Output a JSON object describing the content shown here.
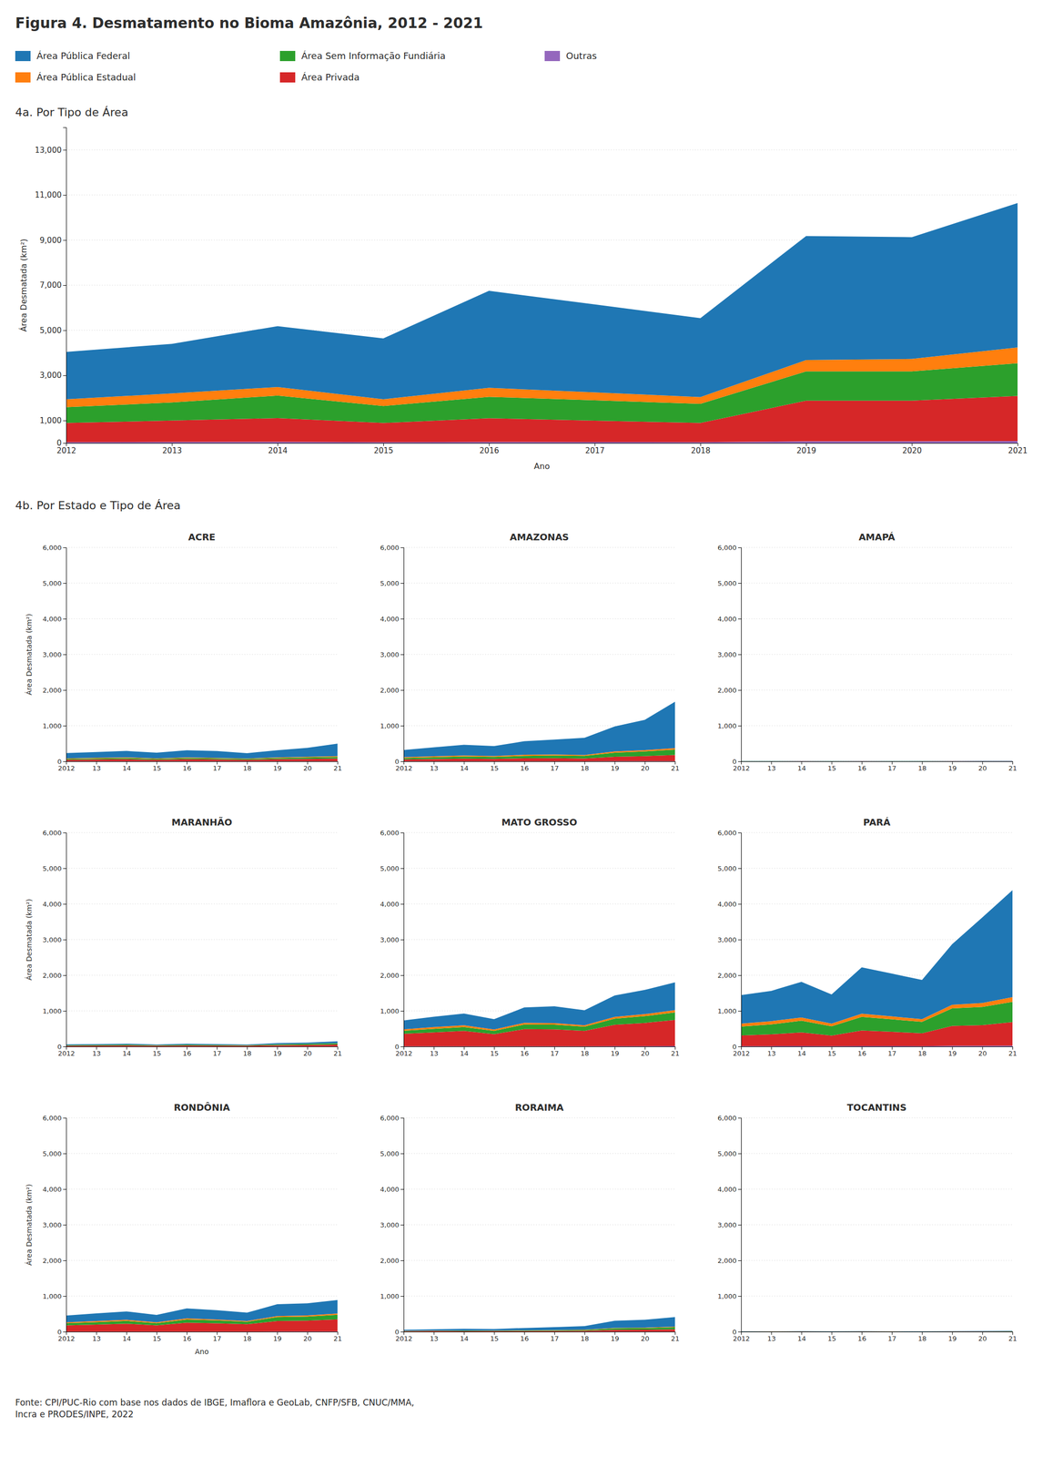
{
  "chart_data": [
    {
      "type": "area",
      "stacked": true,
      "grid": true,
      "legend": "top",
      "title": "Figura 4. Desmatamento no Bioma Amazônia, 2012 - 2021",
      "subtitle": "4a. Por Tipo de Área",
      "xlabel": "Ano",
      "ylabel": "Área Desmatada (km²)",
      "annotations": [
        "Fonte: CPI/PUC-Rio com base nos dados de IBGE, Imaflora e GeoLab, CNFP/SFB, CNUC/MMA,\nIncra e PRODES/INPE, 2022"
      ],
      "categories": [
        "2012",
        "2013",
        "2014",
        "2015",
        "2016",
        "2017",
        "2018",
        "2019",
        "2020",
        "2021"
      ],
      "ylim": [
        0,
        14000
      ],
      "yticks": [
        0,
        {
          "value": 1000,
          "label": "1,000"
        },
        {
          "value": 3000,
          "label": "3,000"
        },
        {
          "value": 5000,
          "label": "5,000"
        },
        {
          "value": 7000,
          "label": "7,000"
        },
        {
          "value": 9000,
          "label": "9,000"
        },
        {
          "value": 11000,
          "label": "11,000"
        },
        {
          "value": 13000,
          "label": "13,000"
        }
      ],
      "series": [
        {
          "name": "Área Pública Federal",
          "values": [
            2100,
            2200,
            2700,
            2700,
            4300,
            3900,
            3500,
            5500,
            5400,
            6400
          ]
        },
        {
          "name": "Área Pública Estadual",
          "values": [
            350,
            400,
            380,
            300,
            400,
            350,
            300,
            500,
            550,
            700
          ]
        },
        {
          "name": "Área Sem Informação Fundiária",
          "values": [
            700,
            800,
            1000,
            750,
            950,
            900,
            850,
            1300,
            1300,
            1450
          ]
        },
        {
          "name": "Área Privada",
          "values": [
            850,
            950,
            1050,
            850,
            1050,
            950,
            850,
            1800,
            1800,
            2000
          ]
        },
        {
          "name": "Outras",
          "values": [
            40,
            50,
            55,
            40,
            50,
            45,
            40,
            80,
            80,
            90
          ]
        }
      ]
    },
    {
      "type": "area",
      "stacked": true,
      "grid": true,
      "title": "ACRE",
      "subtitle": "4b. Por Estado e Tipo de Área",
      "ylabel": "Área Desmatada (km²)",
      "categories": [
        "2012",
        "13",
        "14",
        "15",
        "16",
        "17",
        "18",
        "19",
        "20",
        "21"
      ],
      "ylim": [
        0,
        6000
      ],
      "yticks": [
        0,
        {
          "value": 1000,
          "label": "1,000"
        },
        {
          "value": 2000,
          "label": "2,000"
        },
        {
          "value": 3000,
          "label": "3,000"
        },
        {
          "value": 4000,
          "label": "4,000"
        },
        {
          "value": 5000,
          "label": "5,000"
        },
        {
          "value": 6000,
          "label": "6,000"
        }
      ],
      "series": [
        {
          "values": [
            150,
            160,
            180,
            160,
            200,
            190,
            150,
            200,
            250,
            350
          ]
        },
        {
          "values": [
            15,
            18,
            18,
            15,
            18,
            15,
            12,
            15,
            18,
            20
          ]
        },
        {
          "values": [
            25,
            30,
            35,
            25,
            35,
            30,
            25,
            35,
            40,
            45
          ]
        },
        {
          "values": [
            40,
            50,
            55,
            40,
            55,
            50,
            40,
            55,
            65,
            75
          ]
        },
        {
          "values": [
            3,
            3,
            4,
            3,
            4,
            3,
            3,
            4,
            4,
            5
          ]
        }
      ]
    },
    {
      "type": "area",
      "stacked": true,
      "grid": true,
      "title": "AMAZONAS",
      "categories": [
        "2012",
        "13",
        "14",
        "15",
        "16",
        "17",
        "18",
        "19",
        "20",
        "21"
      ],
      "ylim": [
        0,
        6000
      ],
      "yticks": [
        0,
        {
          "value": 1000,
          "label": "1,000"
        },
        {
          "value": 2000,
          "label": "2,000"
        },
        {
          "value": 3000,
          "label": "3,000"
        },
        {
          "value": 4000,
          "label": "4,000"
        },
        {
          "value": 5000,
          "label": "5,000"
        },
        {
          "value": 6000,
          "label": "6,000"
        }
      ],
      "series": [
        {
          "values": [
            200,
            250,
            300,
            280,
            380,
            420,
            480,
            700,
            850,
            1300
          ]
        },
        {
          "values": [
            25,
            30,
            30,
            25,
            30,
            28,
            25,
            35,
            38,
            45
          ]
        },
        {
          "values": [
            40,
            50,
            60,
            55,
            70,
            75,
            75,
            115,
            130,
            150
          ]
        },
        {
          "values": [
            50,
            60,
            70,
            65,
            80,
            85,
            75,
            120,
            140,
            170
          ]
        },
        {
          "values": [
            4,
            4,
            4,
            4,
            4,
            4,
            4,
            8,
            8,
            8
          ]
        }
      ]
    },
    {
      "type": "area",
      "stacked": true,
      "grid": true,
      "title": "AMAPÁ",
      "categories": [
        "2012",
        "13",
        "14",
        "15",
        "16",
        "17",
        "18",
        "19",
        "20",
        "21"
      ],
      "ylim": [
        0,
        6000
      ],
      "yticks": [
        0,
        {
          "value": 1000,
          "label": "1,000"
        },
        {
          "value": 2000,
          "label": "2,000"
        },
        {
          "value": 3000,
          "label": "3,000"
        },
        {
          "value": 4000,
          "label": "4,000"
        },
        {
          "value": 5000,
          "label": "5,000"
        },
        {
          "value": 6000,
          "label": "6,000"
        }
      ],
      "series": [
        {
          "values": [
            4,
            4,
            5,
            4,
            5,
            4,
            4,
            5,
            6,
            7
          ]
        },
        {
          "values": [
            0,
            0,
            0,
            0,
            0,
            0,
            0,
            0,
            0,
            0
          ]
        },
        {
          "values": [
            1,
            1,
            1,
            1,
            1,
            1,
            1,
            1,
            2,
            2
          ]
        },
        {
          "values": [
            1,
            1,
            2,
            1,
            2,
            1,
            1,
            2,
            2,
            3
          ]
        },
        {
          "values": [
            0,
            0,
            0,
            0,
            0,
            0,
            0,
            0,
            0,
            0
          ]
        }
      ]
    },
    {
      "type": "area",
      "stacked": true,
      "grid": true,
      "title": "MARANHÃO",
      "ylabel": "Área Desmatada (km²)",
      "categories": [
        "2012",
        "13",
        "14",
        "15",
        "16",
        "17",
        "18",
        "19",
        "20",
        "21"
      ],
      "ylim": [
        0,
        6000
      ],
      "yticks": [
        0,
        {
          "value": 1000,
          "label": "1,000"
        },
        {
          "value": 2000,
          "label": "2,000"
        },
        {
          "value": 3000,
          "label": "3,000"
        },
        {
          "value": 4000,
          "label": "4,000"
        },
        {
          "value": 5000,
          "label": "5,000"
        },
        {
          "value": 6000,
          "label": "6,000"
        }
      ],
      "series": [
        {
          "values": [
            20,
            22,
            25,
            18,
            22,
            20,
            18,
            30,
            35,
            50
          ]
        },
        {
          "values": [
            3,
            3,
            3,
            3,
            3,
            3,
            3,
            3,
            3,
            4
          ]
        },
        {
          "values": [
            15,
            18,
            22,
            15,
            22,
            18,
            15,
            25,
            30,
            35
          ]
        },
        {
          "values": [
            22,
            25,
            28,
            20,
            28,
            25,
            20,
            35,
            42,
            55
          ]
        },
        {
          "values": [
            1,
            1,
            2,
            1,
            2,
            1,
            1,
            2,
            2,
            2
          ]
        }
      ]
    },
    {
      "type": "area",
      "stacked": true,
      "grid": true,
      "title": "MATO GROSSO",
      "categories": [
        "2012",
        "13",
        "14",
        "15",
        "16",
        "17",
        "18",
        "19",
        "20",
        "21"
      ],
      "ylim": [
        0,
        6000
      ],
      "yticks": [
        0,
        {
          "value": 1000,
          "label": "1,000"
        },
        {
          "value": 2000,
          "label": "2,000"
        },
        {
          "value": 3000,
          "label": "3,000"
        },
        {
          "value": 4000,
          "label": "4,000"
        },
        {
          "value": 5000,
          "label": "5,000"
        },
        {
          "value": 6000,
          "label": "6,000"
        }
      ],
      "series": [
        {
          "values": [
            250,
            290,
            330,
            290,
            430,
            470,
            420,
            600,
            680,
            780
          ]
        },
        {
          "values": [
            40,
            48,
            48,
            40,
            48,
            44,
            40,
            50,
            58,
            65
          ]
        },
        {
          "values": [
            85,
            100,
            110,
            90,
            130,
            130,
            120,
            170,
            190,
            210
          ]
        },
        {
          "values": [
            350,
            390,
            430,
            340,
            480,
            475,
            430,
            600,
            650,
            730
          ]
        },
        {
          "values": [
            8,
            8,
            8,
            8,
            8,
            8,
            8,
            12,
            12,
            16
          ]
        }
      ]
    },
    {
      "type": "area",
      "stacked": true,
      "grid": true,
      "title": "PARÁ",
      "categories": [
        "2012",
        "13",
        "14",
        "15",
        "16",
        "17",
        "18",
        "19",
        "20",
        "21"
      ],
      "ylim": [
        0,
        6000
      ],
      "yticks": [
        0,
        {
          "value": 1000,
          "label": "1,000"
        },
        {
          "value": 2000,
          "label": "2,000"
        },
        {
          "value": 3000,
          "label": "3,000"
        },
        {
          "value": 4000,
          "label": "4,000"
        },
        {
          "value": 5000,
          "label": "5,000"
        },
        {
          "value": 6000,
          "label": "6,000"
        }
      ],
      "series": [
        {
          "values": [
            800,
            850,
            1000,
            820,
            1300,
            1200,
            1100,
            1700,
            2400,
            3000
          ]
        },
        {
          "values": [
            80,
            90,
            90,
            75,
            90,
            82,
            75,
            100,
            110,
            130
          ]
        },
        {
          "values": [
            250,
            280,
            330,
            260,
            380,
            350,
            320,
            490,
            510,
            570
          ]
        },
        {
          "values": [
            300,
            330,
            380,
            295,
            435,
            400,
            360,
            560,
            580,
            660
          ]
        },
        {
          "values": [
            12,
            12,
            16,
            12,
            16,
            14,
            12,
            20,
            20,
            25
          ]
        }
      ]
    },
    {
      "type": "area",
      "stacked": true,
      "grid": true,
      "title": "RONDÔNIA",
      "xlabel": "Ano",
      "ylabel": "Área Desmatada (km²)",
      "categories": [
        "2012",
        "13",
        "14",
        "15",
        "16",
        "17",
        "18",
        "19",
        "20",
        "21"
      ],
      "ylim": [
        0,
        6000
      ],
      "yticks": [
        0,
        {
          "value": 1000,
          "label": "1,000"
        },
        {
          "value": 2000,
          "label": "2,000"
        },
        {
          "value": 3000,
          "label": "3,000"
        },
        {
          "value": 4000,
          "label": "4,000"
        },
        {
          "value": 5000,
          "label": "5,000"
        },
        {
          "value": 6000,
          "label": "6,000"
        }
      ],
      "series": [
        {
          "values": [
            190,
            215,
            235,
            205,
            280,
            260,
            235,
            330,
            340,
            380
          ]
        },
        {
          "values": [
            25,
            30,
            30,
            25,
            30,
            25,
            22,
            30,
            30,
            35
          ]
        },
        {
          "values": [
            60,
            70,
            80,
            62,
            90,
            82,
            70,
            110,
            115,
            130
          ]
        },
        {
          "values": [
            175,
            195,
            220,
            175,
            250,
            232,
            205,
            295,
            305,
            340
          ]
        },
        {
          "values": [
            4,
            4,
            4,
            4,
            4,
            4,
            4,
            6,
            6,
            6
          ]
        }
      ]
    },
    {
      "type": "area",
      "stacked": true,
      "grid": true,
      "title": "RORAIMA",
      "categories": [
        "2012",
        "13",
        "14",
        "15",
        "16",
        "17",
        "18",
        "19",
        "20",
        "21"
      ],
      "ylim": [
        0,
        6000
      ],
      "yticks": [
        0,
        {
          "value": 1000,
          "label": "1,000"
        },
        {
          "value": 2000,
          "label": "2,000"
        },
        {
          "value": 3000,
          "label": "3,000"
        },
        {
          "value": 4000,
          "label": "4,000"
        },
        {
          "value": 5000,
          "label": "5,000"
        },
        {
          "value": 6000,
          "label": "6,000"
        }
      ],
      "series": [
        {
          "values": [
            30,
            40,
            50,
            45,
            65,
            80,
            100,
            200,
            220,
            270
          ]
        },
        {
          "values": [
            5,
            6,
            6,
            6,
            6,
            7,
            8,
            12,
            12,
            15
          ]
        },
        {
          "values": [
            8,
            10,
            12,
            11,
            15,
            18,
            22,
            42,
            46,
            58
          ]
        },
        {
          "values": [
            10,
            12,
            14,
            13,
            18,
            21,
            24,
            50,
            54,
            65
          ]
        },
        {
          "values": [
            1,
            1,
            1,
            1,
            1,
            1,
            2,
            3,
            3,
            4
          ]
        }
      ]
    },
    {
      "type": "area",
      "stacked": true,
      "grid": true,
      "title": "TOCANTINS",
      "categories": [
        "2012",
        "13",
        "14",
        "15",
        "16",
        "17",
        "18",
        "19",
        "20",
        "21"
      ],
      "ylim": [
        0,
        6000
      ],
      "yticks": [
        0,
        {
          "value": 1000,
          "label": "1,000"
        },
        {
          "value": 2000,
          "label": "2,000"
        },
        {
          "value": 3000,
          "label": "3,000"
        },
        {
          "value": 4000,
          "label": "4,000"
        },
        {
          "value": 5000,
          "label": "5,000"
        },
        {
          "value": 6000,
          "label": "6,000"
        }
      ],
      "series": [
        {
          "values": [
            5,
            6,
            7,
            5,
            7,
            6,
            5,
            7,
            8,
            10
          ]
        },
        {
          "values": [
            1,
            1,
            1,
            1,
            1,
            1,
            1,
            1,
            1,
            1
          ]
        },
        {
          "values": [
            3,
            3,
            4,
            3,
            4,
            3,
            3,
            4,
            4,
            5
          ]
        },
        {
          "values": [
            4,
            5,
            6,
            4,
            6,
            5,
            4,
            6,
            7,
            8
          ]
        },
        {
          "values": [
            0,
            0,
            0,
            0,
            0,
            0,
            0,
            0,
            0,
            0
          ]
        }
      ]
    }
  ]
}
